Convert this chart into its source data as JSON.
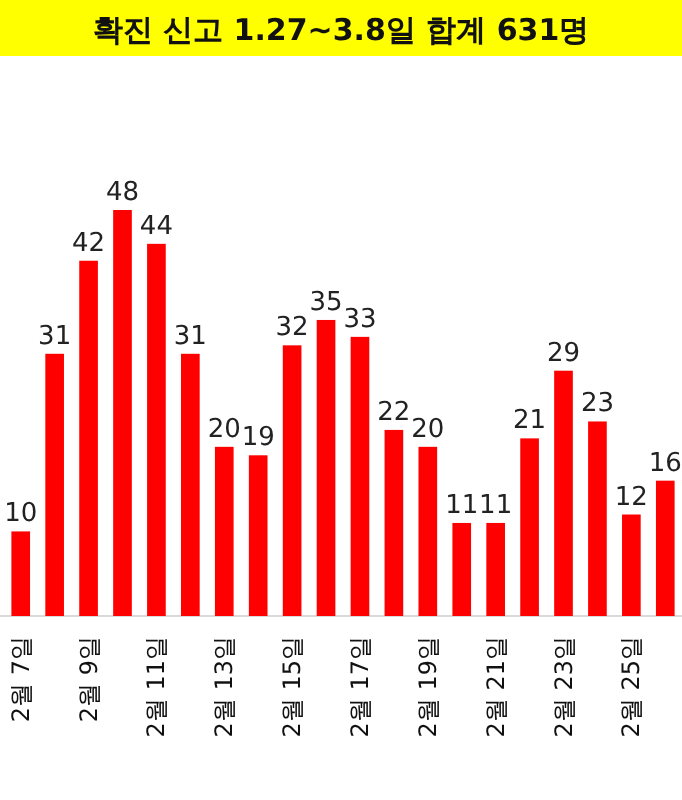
{
  "chart_data": {
    "type": "bar",
    "title": "확진 신고 1.27~3.8일 합계 631명",
    "categories": [
      "2월 7일",
      null,
      "2월 9일",
      null,
      "2월 11일",
      null,
      "2월 13일",
      null,
      "2월 15일",
      null,
      "2월 17일",
      null,
      "2월 19일",
      null,
      "2월 21일",
      null,
      "2월 23일",
      null,
      "2월 25일",
      null
    ],
    "values": [
      10,
      31,
      42,
      48,
      44,
      31,
      20,
      19,
      32,
      35,
      33,
      22,
      20,
      11,
      11,
      21,
      29,
      23,
      12,
      16
    ],
    "color": "#ff0000",
    "data_labels": true
  }
}
